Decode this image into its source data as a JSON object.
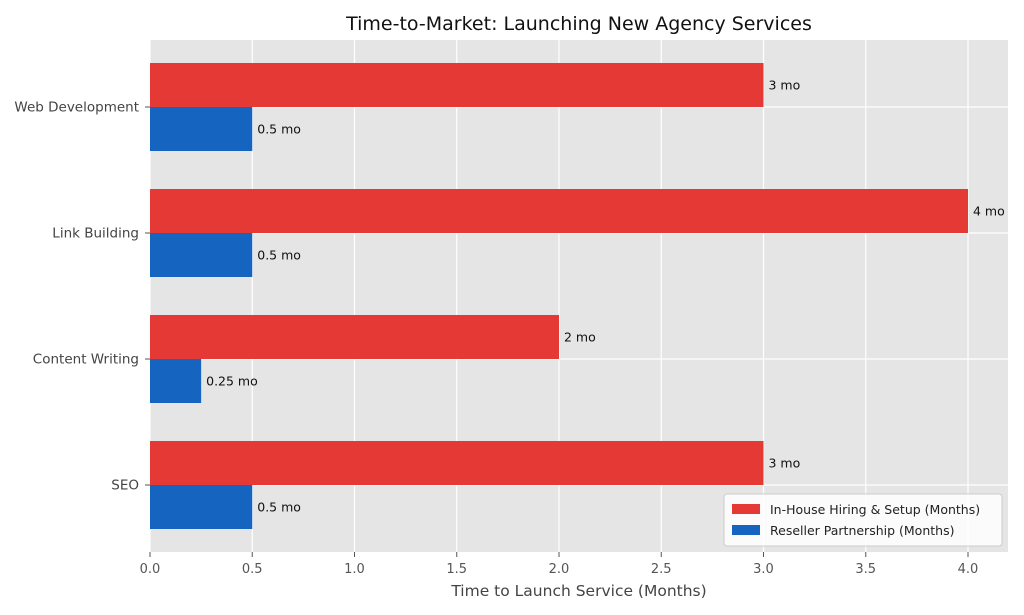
{
  "chart_data": {
    "type": "bar",
    "orientation": "horizontal",
    "title": "Time-to-Market: Launching New Agency Services",
    "xlabel": "Time to Launch Service (Months)",
    "ylabel": "",
    "xlim": [
      0,
      4.2
    ],
    "xticks": [
      "0.0",
      "0.5",
      "1.0",
      "1.5",
      "2.0",
      "2.5",
      "3.0",
      "3.5",
      "4.0"
    ],
    "categories": [
      "Web Development",
      "Link Building",
      "Content Writing",
      "SEO"
    ],
    "series": [
      {
        "name": "In-House Hiring & Setup (Months)",
        "color": "#e53935",
        "values": [
          3,
          4,
          2,
          3
        ],
        "labels": [
          "3 mo",
          "4 mo",
          "2 mo",
          "3 mo"
        ]
      },
      {
        "name": "Reseller Partnership (Months)",
        "color": "#1565c0",
        "values": [
          0.5,
          0.5,
          0.25,
          0.5
        ],
        "labels": [
          "0.5 mo",
          "0.5 mo",
          "0.25 mo",
          "0.5 mo"
        ]
      }
    ],
    "grid": true,
    "legend_position": "bottom-right",
    "background_color": "#e5e5e5"
  }
}
